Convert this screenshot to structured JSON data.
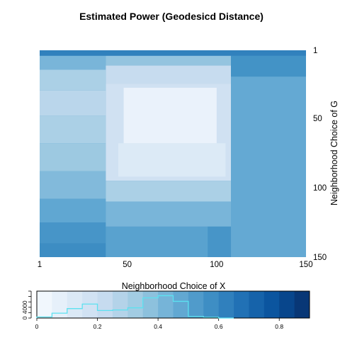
{
  "chart_data": {
    "type": "heatmap",
    "title": "Estimated Power (Geodesicd Distance)",
    "xlabel": "Neighborhood Choice of X",
    "ylabel": "Neighborhood Choice of G",
    "x_range": [
      1,
      150
    ],
    "y_range": [
      1,
      150
    ],
    "x_ticks": [
      "1",
      "50",
      "100",
      "150"
    ],
    "y_ticks": [
      "1",
      "50",
      "100",
      "150"
    ],
    "y_axis_side": "right",
    "y_axis_reversed": true,
    "color_scale": "Blues",
    "color_range": [
      0,
      0.9
    ],
    "grid": false,
    "regions": [
      {
        "x": [
          1,
          150
        ],
        "y": [
          1,
          150
        ],
        "value": 0.52
      },
      {
        "x": [
          1,
          150
        ],
        "y": [
          1,
          5
        ],
        "value": 0.62
      },
      {
        "x": [
          1,
          38
        ],
        "y": [
          5,
          15
        ],
        "value": 0.42
      },
      {
        "x": [
          1,
          38
        ],
        "y": [
          15,
          30
        ],
        "value": 0.3
      },
      {
        "x": [
          1,
          38
        ],
        "y": [
          30,
          48
        ],
        "value": 0.26
      },
      {
        "x": [
          1,
          38
        ],
        "y": [
          48,
          68
        ],
        "value": 0.3
      },
      {
        "x": [
          1,
          38
        ],
        "y": [
          68,
          88
        ],
        "value": 0.34
      },
      {
        "x": [
          1,
          38
        ],
        "y": [
          88,
          108
        ],
        "value": 0.4
      },
      {
        "x": [
          1,
          38
        ],
        "y": [
          108,
          125
        ],
        "value": 0.48
      },
      {
        "x": [
          1,
          38
        ],
        "y": [
          125,
          140
        ],
        "value": 0.55
      },
      {
        "x": [
          1,
          38
        ],
        "y": [
          140,
          150
        ],
        "value": 0.58
      },
      {
        "x": [
          38,
          108
        ],
        "y": [
          5,
          12
        ],
        "value": 0.36
      },
      {
        "x": [
          38,
          108
        ],
        "y": [
          12,
          25
        ],
        "value": 0.22
      },
      {
        "x": [
          38,
          108
        ],
        "y": [
          25,
          95
        ],
        "value": 0.18
      },
      {
        "x": [
          48,
          100
        ],
        "y": [
          28,
          68
        ],
        "value": 0.06
      },
      {
        "x": [
          45,
          105
        ],
        "y": [
          68,
          92
        ],
        "value": 0.12
      },
      {
        "x": [
          38,
          108
        ],
        "y": [
          95,
          110
        ],
        "value": 0.3
      },
      {
        "x": [
          38,
          108
        ],
        "y": [
          110,
          128
        ],
        "value": 0.42
      },
      {
        "x": [
          38,
          108
        ],
        "y": [
          128,
          150
        ],
        "value": 0.5
      },
      {
        "x": [
          108,
          150
        ],
        "y": [
          5,
          20
        ],
        "value": 0.56
      },
      {
        "x": [
          108,
          150
        ],
        "y": [
          20,
          150
        ],
        "value": 0.47
      },
      {
        "x": [
          95,
          108
        ],
        "y": [
          128,
          150
        ],
        "value": 0.55
      }
    ],
    "color_key": {
      "breaks": [
        0,
        0.05,
        0.1,
        0.15,
        0.2,
        0.25,
        0.3,
        0.35,
        0.4,
        0.45,
        0.5,
        0.55,
        0.6,
        0.65,
        0.7,
        0.75,
        0.8,
        0.85,
        0.9
      ],
      "x_ticks": [
        "0",
        "0.2",
        "0.4",
        "0.6",
        "0.8"
      ],
      "y_ticks": [
        "0",
        "4000"
      ],
      "histogram": [
        {
          "x": 0.0,
          "count": 400
        },
        {
          "x": 0.05,
          "count": 1800
        },
        {
          "x": 0.1,
          "count": 3500
        },
        {
          "x": 0.15,
          "count": 5200
        },
        {
          "x": 0.2,
          "count": 2800
        },
        {
          "x": 0.25,
          "count": 3000
        },
        {
          "x": 0.3,
          "count": 3800
        },
        {
          "x": 0.35,
          "count": 7500
        },
        {
          "x": 0.4,
          "count": 8300
        },
        {
          "x": 0.45,
          "count": 6200
        },
        {
          "x": 0.5,
          "count": 600
        },
        {
          "x": 0.55,
          "count": 300
        },
        {
          "x": 0.6,
          "count": 0
        }
      ],
      "histogram_max": 10000
    }
  }
}
